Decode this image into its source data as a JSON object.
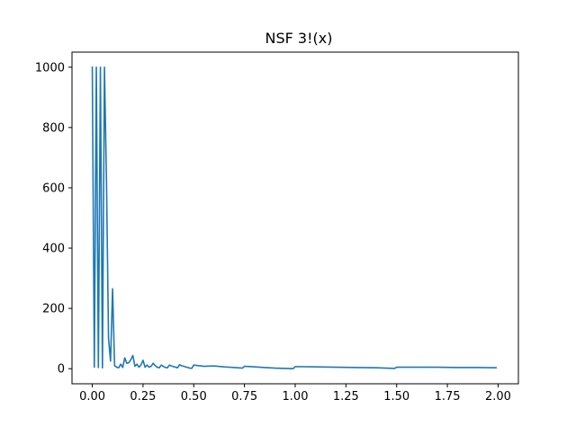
{
  "chart_data": {
    "type": "line",
    "title": "NSF 3!(x)",
    "xlabel": "",
    "ylabel": "",
    "xlim": [
      -0.1,
      2.1
    ],
    "ylim": [
      -50,
      1050
    ],
    "grid": false,
    "legend": "none",
    "x_ticks": [
      0.0,
      0.25,
      0.5,
      0.75,
      1.0,
      1.25,
      1.5,
      1.75,
      2.0
    ],
    "x_tick_labels": [
      "0.00",
      "0.25",
      "0.50",
      "0.75",
      "1.00",
      "1.25",
      "1.50",
      "1.75",
      "2.00"
    ],
    "y_ticks": [
      0,
      200,
      400,
      600,
      800,
      1000
    ],
    "y_tick_labels": [
      "0",
      "200",
      "400",
      "600",
      "800",
      "1000"
    ],
    "series": [
      {
        "color": "#1f77b4",
        "x": [
          0.0,
          0.01,
          0.02,
          0.03,
          0.04,
          0.05,
          0.06,
          0.07,
          0.08,
          0.09,
          0.1,
          0.11,
          0.12,
          0.13,
          0.14,
          0.15,
          0.16,
          0.17,
          0.18,
          0.19,
          0.2,
          0.21,
          0.22,
          0.23,
          0.24,
          0.25,
          0.26,
          0.27,
          0.28,
          0.29,
          0.3,
          0.31,
          0.32,
          0.33,
          0.34,
          0.35,
          0.36,
          0.37,
          0.38,
          0.39,
          0.4,
          0.41,
          0.42,
          0.43,
          0.44,
          0.45,
          0.46,
          0.47,
          0.48,
          0.49,
          0.5,
          0.55,
          0.6,
          0.65,
          0.7,
          0.74,
          0.75,
          0.8,
          0.85,
          0.9,
          0.95,
          0.99,
          1.0,
          1.1,
          1.2,
          1.3,
          1.4,
          1.49,
          1.5,
          1.6,
          1.7,
          1.8,
          1.9,
          1.99
        ],
        "y": [
          1000,
          5,
          1000,
          4,
          1000,
          3,
          1000,
          620,
          100,
          25,
          265,
          10,
          5,
          3,
          15,
          4,
          36,
          18,
          20,
          30,
          44,
          8,
          15,
          5,
          12,
          28,
          5,
          12,
          5,
          8,
          18,
          10,
          5,
          3,
          12,
          8,
          4,
          3,
          12,
          9,
          7,
          5,
          3,
          13,
          10,
          8,
          6,
          4,
          2,
          1,
          12,
          8,
          9,
          6,
          4,
          2,
          8,
          6,
          4,
          2,
          1,
          0,
          7,
          6,
          5,
          4,
          3,
          1,
          5,
          5,
          5,
          4,
          4,
          3
        ]
      }
    ]
  }
}
